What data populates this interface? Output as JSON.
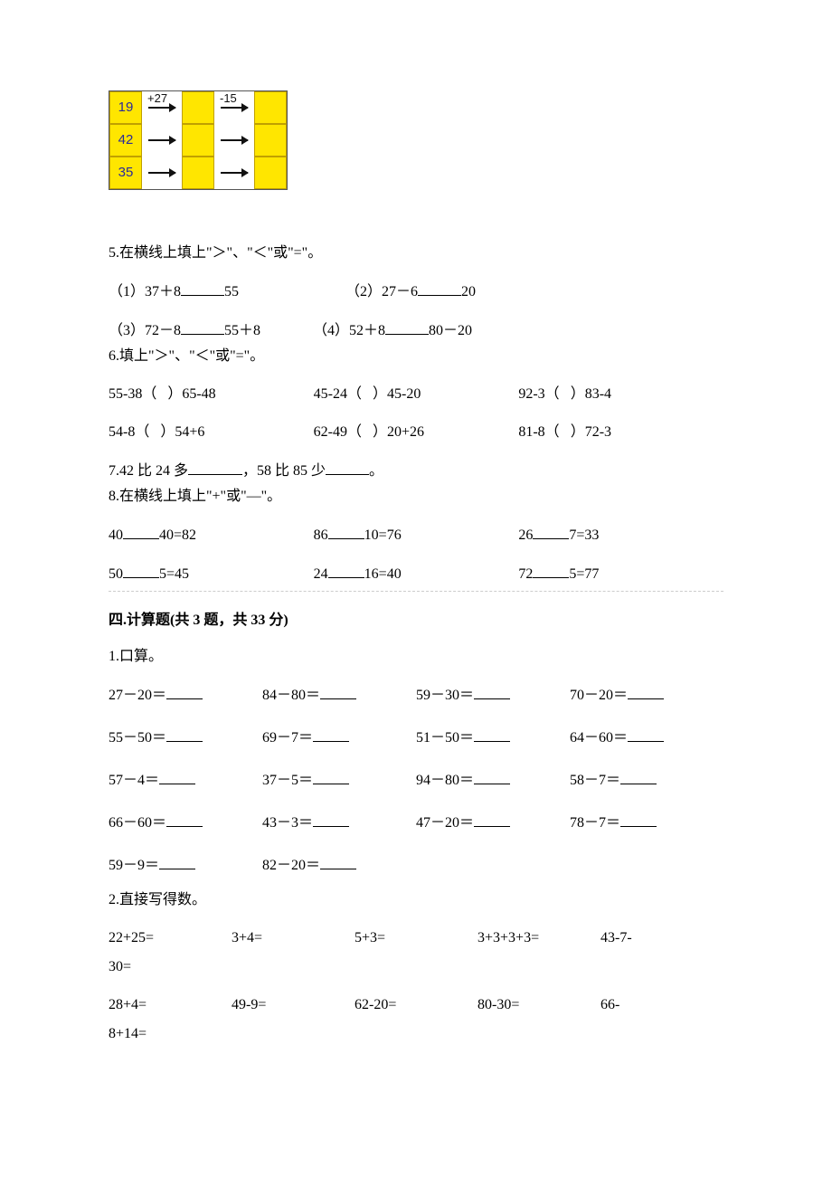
{
  "chart": {
    "op1": "+27",
    "op2": "-15",
    "rows": [
      "19",
      "42",
      "35"
    ],
    "cell_bg": "#ffe600",
    "cell_border": "#c0a000",
    "text_color": "#2a2a9a"
  },
  "q5": {
    "title": "5.在横线上填上\"＞\"、\"＜\"或\"=\"。",
    "a": "（1）37＋8",
    "a2": "55",
    "b": "（2）27－6",
    "b2": "20",
    "c": "（3）72－8",
    "c2": "55＋8",
    "d": "（4）52＋8",
    "d2": "80－20"
  },
  "q6": {
    "title": "6.填上\"＞\"、\"＜\"或\"=\"。",
    "items": [
      [
        "55-38（",
        "）65-48"
      ],
      [
        "45-24（",
        "）45-20"
      ],
      [
        "92-3（",
        "）83-4"
      ],
      [
        "54-8（",
        "）54+6"
      ],
      [
        "62-49（",
        "）20+26"
      ],
      [
        "81-8（",
        "）72-3"
      ]
    ]
  },
  "q7": {
    "a": "7.42 比 24 多",
    "b": "，58 比 85 少",
    "c": "。"
  },
  "q8": {
    "title": "8.在横线上填上\"+\"或\"—\"。",
    "rows": [
      [
        [
          "40",
          "40=82"
        ],
        [
          "86",
          "10=76"
        ],
        [
          "26",
          "7=33"
        ]
      ],
      [
        [
          "50",
          "5=45"
        ],
        [
          "24",
          "16=40"
        ],
        [
          "72",
          "5=77"
        ]
      ]
    ]
  },
  "sec4": {
    "title": "四.计算题(共 3 题，共 33 分)"
  },
  "p1": {
    "title": "1.口算。",
    "rows": [
      [
        "27－20＝",
        "84－80＝",
        "59－30＝",
        "70－20＝"
      ],
      [
        "55－50＝",
        "69－7＝",
        "51－50＝",
        "64－60＝"
      ],
      [
        "57－4＝",
        "37－5＝",
        "94－80＝",
        "58－7＝"
      ],
      [
        "66－60＝",
        "43－3＝",
        "47－20＝",
        "78－7＝"
      ],
      [
        "59－9＝",
        "82－20＝",
        "",
        ""
      ]
    ]
  },
  "p2": {
    "title": "2.直接写得数。",
    "rows": [
      [
        "22+25=",
        "3+4=",
        "5+3=",
        "3+3+3+3=",
        "43-7-"
      ],
      [
        "30="
      ],
      [
        "28+4=",
        "49-9=",
        "62-20=",
        "80-30=",
        "66-"
      ],
      [
        "8+14="
      ]
    ]
  }
}
